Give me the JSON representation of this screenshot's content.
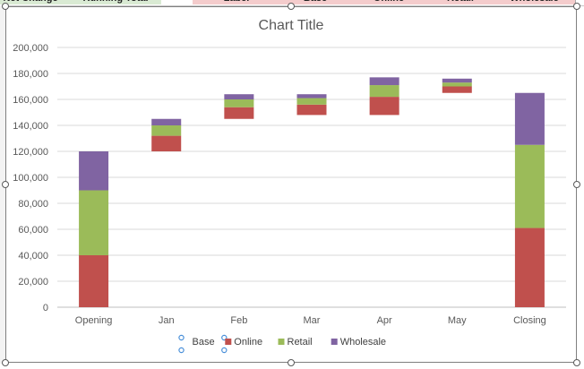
{
  "sheet": {
    "columns": [
      "Net Change",
      "Running Total",
      "",
      "Label",
      "Base",
      "Online",
      "Retail",
      "Wholesale"
    ],
    "fills": [
      "#d9ead3",
      "#d9ead3",
      "#ffffff",
      "#f4cccc",
      "#f4cccc",
      "#f4cccc",
      "#f4cccc",
      "#f4cccc"
    ]
  },
  "colors": {
    "Base": "none",
    "Online": "#c0504d",
    "Retail": "#9bbb59",
    "Wholesale": "#8064a2",
    "gridline": "#d9d9d9",
    "axis_text": "#595959",
    "border": "#7f7f7f"
  },
  "chart_data": {
    "type": "bar",
    "stacked": true,
    "title": "Chart Title",
    "categories": [
      "Opening",
      "Jan",
      "Feb",
      "Mar",
      "Apr",
      "May",
      "Closing"
    ],
    "series": [
      {
        "name": "Base",
        "values": [
          0,
          120000,
          145000,
          148000,
          148000,
          165000,
          0
        ]
      },
      {
        "name": "Online",
        "values": [
          40000,
          12000,
          9000,
          8000,
          14000,
          5000,
          61000
        ]
      },
      {
        "name": "Retail",
        "values": [
          50000,
          8000,
          6000,
          5000,
          9000,
          3000,
          64000
        ]
      },
      {
        "name": "Wholesale",
        "values": [
          30000,
          5000,
          4000,
          3000,
          6000,
          3000,
          40000
        ]
      }
    ],
    "ylim": [
      0,
      200000
    ],
    "yticks": [
      0,
      20000,
      40000,
      60000,
      80000,
      100000,
      120000,
      140000,
      160000,
      180000,
      200000
    ],
    "ytick_labels": [
      "0",
      "20,000",
      "40,000",
      "60,000",
      "80,000",
      "100,000",
      "120,000",
      "140,000",
      "160,000",
      "180,000",
      "200,000"
    ],
    "xlabel": "",
    "ylabel": "",
    "grid": true,
    "legend": {
      "position": "bottom",
      "entries": [
        "Base",
        "Online",
        "Retail",
        "Wholesale"
      ],
      "selected_entry": "Base"
    }
  }
}
